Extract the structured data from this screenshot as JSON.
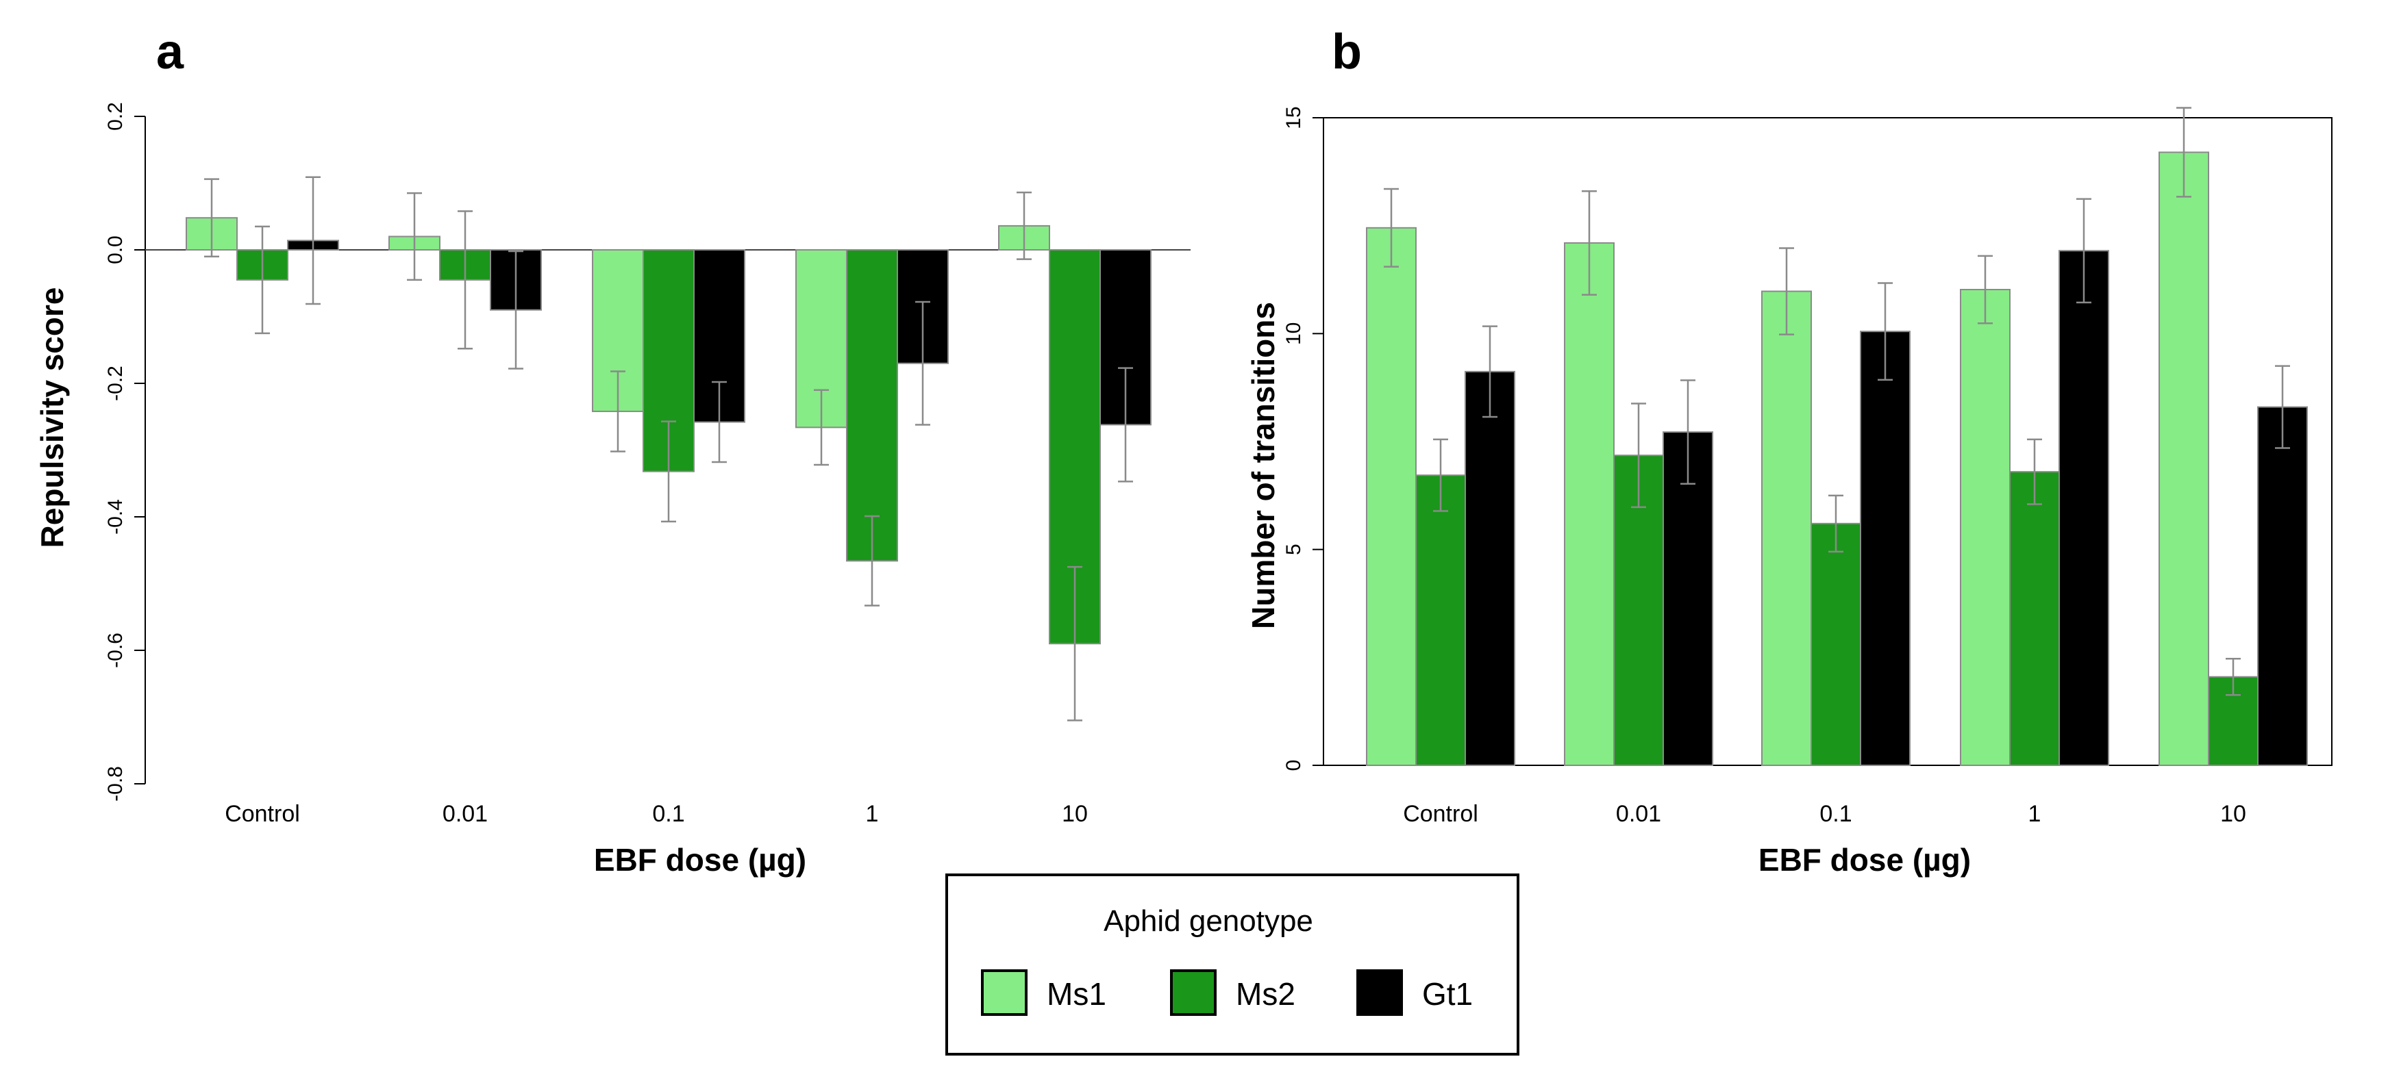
{
  "chart_data": [
    {
      "panel": "a",
      "type": "bar",
      "categories": [
        "Control",
        "0.01",
        "0.1",
        "1",
        "10"
      ],
      "series": [
        {
          "name": "Ms1",
          "values": [
            0.048,
            0.02,
            -0.242,
            -0.266,
            0.036
          ],
          "errors": [
            0.058,
            0.065,
            0.06,
            0.056,
            0.05
          ]
        },
        {
          "name": "Ms2",
          "values": [
            -0.045,
            -0.045,
            -0.332,
            -0.466,
            -0.59
          ],
          "errors": [
            0.08,
            0.103,
            0.075,
            0.067,
            0.115
          ]
        },
        {
          "name": "Gt1",
          "values": [
            0.014,
            -0.09,
            -0.258,
            -0.17,
            -0.262
          ],
          "errors": [
            0.095,
            0.088,
            0.06,
            0.092,
            0.085
          ]
        }
      ],
      "title": "",
      "xlabel": "EBF dose (µg)",
      "ylabel": "Repulsivity score",
      "ylim": [
        -0.8,
        0.2
      ],
      "yticks": [
        "-0.8",
        "-0.6",
        "-0.4",
        "-0.2",
        "0.0",
        "0.2"
      ],
      "yticks_values": [
        -0.8,
        -0.6,
        -0.4,
        -0.2,
        0.0,
        0.2
      ]
    },
    {
      "panel": "b",
      "type": "bar",
      "categories": [
        "Control",
        "0.01",
        "0.1",
        "1",
        "10"
      ],
      "series": [
        {
          "name": "Ms1",
          "values": [
            12.45,
            12.1,
            10.98,
            11.02,
            14.2
          ],
          "errors": [
            0.9,
            1.2,
            1.0,
            0.78,
            1.03
          ]
        },
        {
          "name": "Ms2",
          "values": [
            6.72,
            7.18,
            5.6,
            6.8,
            2.05
          ],
          "errors": [
            0.83,
            1.2,
            0.65,
            0.75,
            0.42
          ]
        },
        {
          "name": "Gt1",
          "values": [
            9.12,
            7.72,
            10.05,
            11.92,
            8.3
          ],
          "errors": [
            1.05,
            1.2,
            1.12,
            1.2,
            0.95
          ]
        }
      ],
      "title": "",
      "xlabel": "EBF dose (µg)",
      "ylabel": "Number of transitions",
      "ylim": [
        0,
        15
      ],
      "yticks": [
        "0",
        "5",
        "10",
        "15"
      ],
      "yticks_values": [
        0,
        5,
        10,
        15
      ]
    }
  ],
  "panels": {
    "a": "a",
    "b": "b"
  },
  "legend": {
    "title": "Aphid genotype",
    "entries": [
      "Ms1",
      "Ms2",
      "Gt1"
    ]
  },
  "colors": {
    "Ms1": "#86ec86",
    "Ms2": "#1a961a",
    "Gt1": "#000000",
    "bar_edge": "#8a8a8a",
    "error_bar": "#8a8a8a",
    "axis": "#000000"
  }
}
